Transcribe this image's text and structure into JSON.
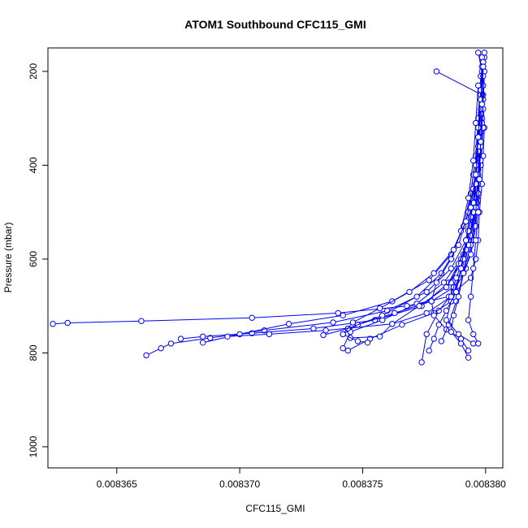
{
  "chart_data": {
    "type": "line",
    "title": "ATOM1 Southbound CFC115_GMI",
    "xlabel": "CFC115_GMI",
    "ylabel": "Pressure (mbar)",
    "xlim": [
      0.0083622,
      0.0083807
    ],
    "ylim": [
      1045,
      150
    ],
    "y_reversed": true,
    "x_ticks": [
      0.008365,
      0.00837,
      0.008375,
      0.00838
    ],
    "x_tick_labels": [
      "0.008365",
      "0.008370",
      "0.008375",
      "0.008380"
    ],
    "y_ticks": [
      200,
      400,
      600,
      800,
      1000
    ],
    "y_tick_labels": [
      "200",
      "400",
      "600",
      "800",
      "1000"
    ],
    "grid": false,
    "legend": "none",
    "marker": "open-circle",
    "color": "#0000ff",
    "series": [
      {
        "x": [
          0.0083797,
          0.00837985,
          0.0083799,
          0.00837995,
          0.0083799,
          0.00837985,
          0.00837975,
          0.0083797,
          0.0083796,
          0.0083794,
          0.0083785,
          0.0083768,
          0.008374,
          0.0083705,
          0.008366,
          0.008363,
          0.0083624
        ],
        "y": [
          160,
          200,
          260,
          320,
          380,
          440,
          500,
          560,
          600,
          640,
          680,
          700,
          715,
          725,
          732,
          736,
          738
        ]
      },
      {
        "x": [
          0.00837995,
          0.0083799,
          0.0083798,
          0.0083797,
          0.0083795,
          0.0083792,
          0.0083786,
          0.0083776,
          0.008376,
          0.0083738,
          0.008371,
          0.0083688,
          0.0083672,
          0.0083668,
          0.0083662
        ],
        "y": [
          170,
          250,
          330,
          410,
          490,
          560,
          620,
          670,
          710,
          735,
          752,
          768,
          780,
          790,
          805
        ]
      },
      {
        "x": [
          0.0083799,
          0.00837985,
          0.0083798,
          0.0083797,
          0.0083795,
          0.0083791,
          0.0083785,
          0.0083774,
          0.0083755,
          0.008373,
          0.0083705,
          0.0083685,
          0.0083676
        ],
        "y": [
          180,
          270,
          360,
          440,
          520,
          590,
          650,
          700,
          730,
          748,
          758,
          765,
          770
        ]
      },
      {
        "x": [
          0.008378,
          0.00837985,
          0.0083799,
          0.0083798,
          0.00837965,
          0.0083794,
          0.008379,
          0.0083783,
          0.0083772,
          0.0083758,
          0.0083745,
          0.0083742
        ],
        "y": [
          200,
          250,
          320,
          400,
          470,
          540,
          600,
          650,
          695,
          730,
          755,
          790
        ]
      },
      {
        "x": [
          0.0083798,
          0.0083797,
          0.0083796,
          0.0083794,
          0.0083791,
          0.0083786,
          0.0083777,
          0.0083762,
          0.0083742,
          0.008372,
          0.00837,
          0.0083685
        ],
        "y": [
          210,
          300,
          380,
          460,
          530,
          590,
          645,
          690,
          720,
          738,
          760,
          778
        ]
      },
      {
        "x": [
          0.0083799,
          0.00837985,
          0.0083798,
          0.00837965,
          0.0083795,
          0.0083792,
          0.0083787,
          0.0083781,
          0.0083776,
          0.0083774
        ],
        "y": [
          190,
          300,
          400,
          480,
          560,
          620,
          670,
          710,
          760,
          820
        ]
      },
      {
        "x": [
          0.00837995,
          0.0083799,
          0.00837985,
          0.0083798,
          0.0083797,
          0.0083796,
          0.0083794,
          0.0083791,
          0.0083787,
          0.0083778,
          0.0083763,
          0.0083748,
          0.0083742
        ],
        "y": [
          160,
          230,
          310,
          390,
          460,
          530,
          590,
          630,
          660,
          690,
          715,
          740,
          760
        ]
      },
      {
        "x": [
          0.0083798,
          0.0083797,
          0.0083795,
          0.0083793,
          0.0083789,
          0.0083782,
          0.0083772,
          0.0083758,
          0.0083744,
          0.0083734
        ],
        "y": [
          250,
          340,
          420,
          500,
          570,
          630,
          680,
          720,
          748,
          762
        ]
      },
      {
        "x": [
          0.00837995,
          0.0083799,
          0.0083798,
          0.0083797,
          0.00837955,
          0.0083793,
          0.0083789,
          0.0083786,
          0.0083786,
          0.0083779,
          0.0083766,
          0.0083753,
          0.0083744
        ],
        "y": [
          200,
          280,
          360,
          430,
          500,
          560,
          610,
          650,
          690,
          715,
          740,
          770,
          795
        ]
      },
      {
        "x": [
          0.0083799,
          0.00837985,
          0.0083798,
          0.0083797,
          0.0083796,
          0.0083794,
          0.008379,
          0.0083784,
          0.0083773,
          0.0083762,
          0.0083757,
          0.0083745
        ],
        "y": [
          190,
          270,
          350,
          420,
          490,
          550,
          610,
          660,
          700,
          738,
          765,
          768
        ]
      },
      {
        "x": [
          0.0083797,
          0.0083796,
          0.0083795,
          0.0083793,
          0.008379,
          0.0083786,
          0.008378,
          0.0083778,
          0.0083779,
          0.0083784,
          0.008379,
          0.0083793
        ],
        "y": [
          230,
          310,
          390,
          470,
          540,
          600,
          650,
          690,
          720,
          750,
          770,
          795
        ]
      },
      {
        "x": [
          0.00837985,
          0.0083798,
          0.00837975,
          0.0083797,
          0.0083796,
          0.0083794,
          0.0083791,
          0.0083788,
          0.0083785,
          0.0083782
        ],
        "y": [
          170,
          260,
          340,
          420,
          500,
          570,
          630,
          690,
          740,
          775
        ]
      },
      {
        "x": [
          0.0083799,
          0.0083798,
          0.0083797,
          0.0083796,
          0.0083795,
          0.0083793,
          0.0083791,
          0.0083789,
          0.0083787,
          0.0083786,
          0.008379,
          0.0083793
        ],
        "y": [
          180,
          260,
          340,
          420,
          500,
          570,
          630,
          680,
          720,
          755,
          780,
          810
        ]
      },
      {
        "x": [
          0.0083799,
          0.0083798,
          0.0083797,
          0.0083795,
          0.0083792,
          0.0083787,
          0.0083779,
          0.0083769,
          0.0083757,
          0.0083746,
          0.0083742,
          0.0083748,
          0.0083752
        ],
        "y": [
          210,
          290,
          370,
          450,
          520,
          580,
          630,
          670,
          705,
          735,
          760,
          775,
          778
        ]
      },
      {
        "x": [
          0.00837985,
          0.0083798,
          0.0083797,
          0.0083796,
          0.0083794,
          0.0083792,
          0.0083789,
          0.0083786,
          0.0083784,
          0.0083789,
          0.0083795
        ],
        "y": [
          190,
          280,
          360,
          440,
          510,
          580,
          640,
          690,
          730,
          760,
          780
        ]
      },
      {
        "x": [
          0.0083798,
          0.0083797,
          0.0083796,
          0.0083795,
          0.0083793,
          0.0083791,
          0.0083788,
          0.0083786,
          0.0083776,
          0.0083762,
          0.0083735,
          0.0083712,
          0.0083695
        ],
        "y": [
          240,
          320,
          400,
          480,
          540,
          600,
          640,
          680,
          715,
          738,
          752,
          760,
          765
        ]
      },
      {
        "x": [
          0.0083799,
          0.0083798,
          0.0083797,
          0.0083796,
          0.0083794,
          0.0083792,
          0.008379,
          0.0083788,
          0.0083784,
          0.0083781,
          0.0083779,
          0.0083777
        ],
        "y": [
          180,
          260,
          340,
          420,
          490,
          560,
          620,
          670,
          710,
          740,
          770,
          795
        ]
      },
      {
        "x": [
          0.0083799,
          0.00837985,
          0.0083798,
          0.00837975,
          0.0083797,
          0.0083796,
          0.0083795,
          0.0083794,
          0.0083793,
          0.0083795,
          0.0083797
        ],
        "y": [
          190,
          270,
          350,
          430,
          500,
          560,
          620,
          680,
          730,
          760,
          780
        ]
      }
    ]
  }
}
